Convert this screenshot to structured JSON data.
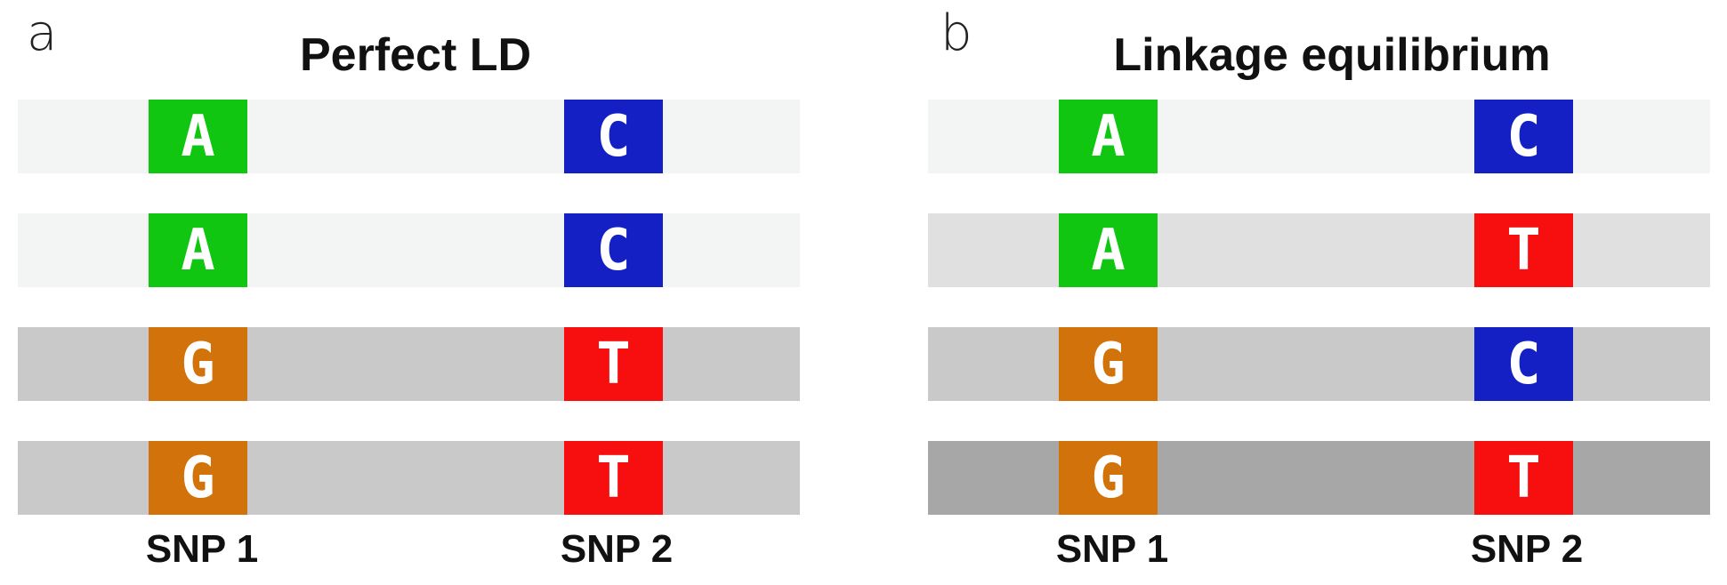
{
  "colors": {
    "A": "#11c611",
    "C": "#1420c4",
    "G": "#d2720b",
    "T": "#f70f0f",
    "row_lightest": "#f3f4f4",
    "row_light": "#e0e0e0",
    "row_mid": "#c9c9c9",
    "row_dark": "#a7a7a7"
  },
  "panels": [
    {
      "letter": "a",
      "title": "Perfect LD",
      "snp_labels": [
        "SNP 1",
        "SNP 2"
      ],
      "rows": [
        {
          "snp1": "A",
          "snp2": "C",
          "shade": "row_lightest"
        },
        {
          "snp1": "A",
          "snp2": "C",
          "shade": "row_lightest"
        },
        {
          "snp1": "G",
          "snp2": "T",
          "shade": "row_mid"
        },
        {
          "snp1": "G",
          "snp2": "T",
          "shade": "row_mid"
        }
      ]
    },
    {
      "letter": "b",
      "title": "Linkage equilibrium",
      "snp_labels": [
        "SNP 1",
        "SNP 2"
      ],
      "rows": [
        {
          "snp1": "A",
          "snp2": "C",
          "shade": "row_lightest"
        },
        {
          "snp1": "A",
          "snp2": "T",
          "shade": "row_light"
        },
        {
          "snp1": "G",
          "snp2": "C",
          "shade": "row_mid"
        },
        {
          "snp1": "G",
          "snp2": "T",
          "shade": "row_dark"
        }
      ]
    }
  ]
}
